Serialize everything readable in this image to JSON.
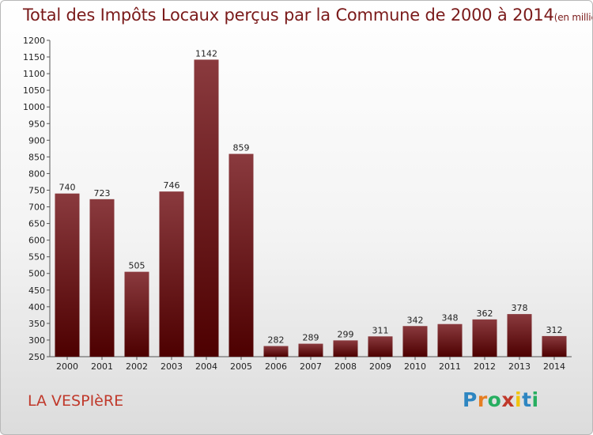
{
  "title": "Total des Impôts Locaux perçus par la Commune de 2000 à 2014",
  "title_unit": "(en milliers d'€)",
  "commune": "LA VESPIèRE",
  "logo": {
    "text": "Proxiti",
    "letters": [
      {
        "ch": "P",
        "color": "#2e86c1"
      },
      {
        "ch": "r",
        "color": "#e67e22"
      },
      {
        "ch": "o",
        "color": "#27ae60"
      },
      {
        "ch": "x",
        "color": "#c0392b"
      },
      {
        "ch": "i",
        "color": "#f1c40f"
      },
      {
        "ch": "t",
        "color": "#2e86c1"
      },
      {
        "ch": "i",
        "color": "#27ae60"
      }
    ]
  },
  "colors": {
    "bar_top": "#8a3a3e",
    "bar_bottom": "#4d0000",
    "title": "#7a1a1a",
    "commune": "#c0392b"
  },
  "chart_data": {
    "type": "bar",
    "title": "Total des Impôts Locaux perçus par la Commune de 2000 à 2014",
    "xlabel": "",
    "ylabel": "",
    "categories": [
      "2000",
      "2001",
      "2002",
      "2003",
      "2004",
      "2005",
      "2006",
      "2007",
      "2008",
      "2009",
      "2010",
      "2011",
      "2012",
      "2013",
      "2014"
    ],
    "values": [
      740,
      723,
      505,
      746,
      1142,
      859,
      282,
      289,
      299,
      311,
      342,
      348,
      362,
      378,
      312
    ],
    "ylim": [
      250,
      1200
    ],
    "yticks": [
      250,
      300,
      350,
      400,
      450,
      500,
      550,
      600,
      650,
      700,
      750,
      800,
      850,
      900,
      950,
      1000,
      1050,
      1100,
      1150,
      1200
    ],
    "grid": false,
    "legend": "none"
  }
}
